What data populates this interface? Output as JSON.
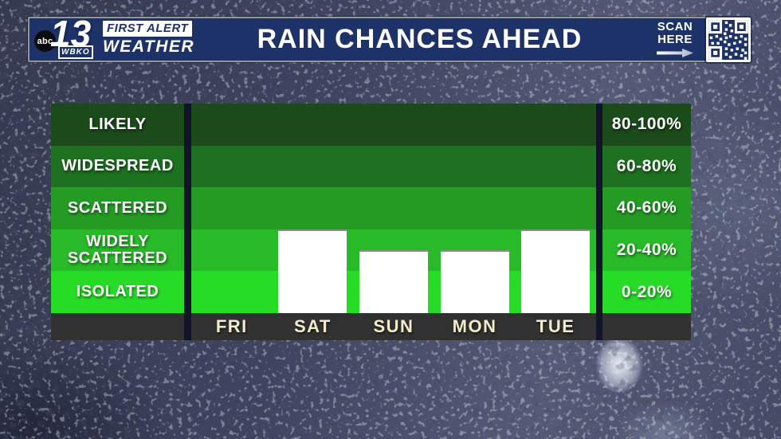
{
  "header": {
    "logo": {
      "network": "abc",
      "channel": "13",
      "station": "WBKO",
      "brand_top": "FIRST ALERT",
      "brand_bottom": "WEATHER"
    },
    "title": "RAIN CHANCES AHEAD",
    "scan_here": {
      "line1": "SCAN",
      "line2": "HERE"
    },
    "qr_icon": "qr-code",
    "colors": {
      "header_navy": "#1d3269",
      "border_gray": "#9097a4"
    }
  },
  "chart_data": {
    "type": "bar",
    "title": "RAIN CHANCES AHEAD",
    "categories": [
      "FRI",
      "SAT",
      "SUN",
      "MON",
      "TUE"
    ],
    "values": [
      0,
      40,
      30,
      30,
      40
    ],
    "unit": "%",
    "ylim": [
      0,
      100
    ],
    "grid": false,
    "legend_position": "none",
    "bar_color": "#ffffff",
    "axis_band_color": "#313131",
    "category_label_color": "#f1ecca",
    "bands": [
      {
        "label": "LIKELY",
        "range": "80-100%",
        "color": "#1b4a1b"
      },
      {
        "label": "WIDESPREAD",
        "range": "60-80%",
        "color": "#1e7120"
      },
      {
        "label": "SCATTERED",
        "range": "40-60%",
        "color": "#249c24"
      },
      {
        "label": "WIDELY SCATTERED",
        "range": "20-40%",
        "color": "#28ba28"
      },
      {
        "label": "ISOLATED",
        "range": "0-20%",
        "color": "#27dc27"
      }
    ]
  }
}
